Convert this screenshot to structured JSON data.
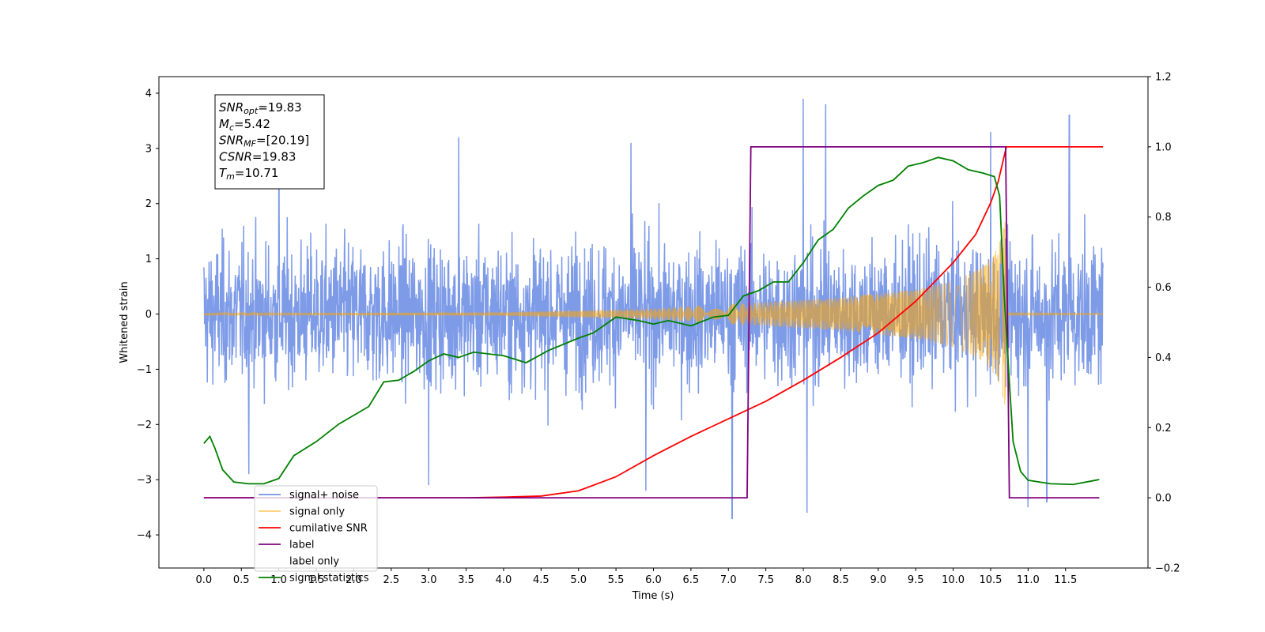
{
  "chart_data": {
    "type": "line",
    "xlabel": "Time (s)",
    "ylabel": "Whitened strain",
    "xlim": [
      -0.6,
      12.6
    ],
    "ylim": [
      -4.6,
      4.3
    ],
    "ylim_right": [
      -0.2,
      1.2
    ],
    "xticks": [
      0.0,
      0.5,
      1.0,
      1.5,
      2.0,
      2.5,
      3.0,
      3.5,
      4.0,
      4.5,
      5.0,
      5.5,
      6.0,
      6.5,
      7.0,
      7.5,
      8.0,
      8.5,
      9.0,
      9.5,
      10.0,
      10.5,
      11.0,
      11.5
    ],
    "xtick_labels": [
      "0.0",
      "0.5",
      "1.0",
      "1.5",
      "2.0",
      "2.5",
      "3.0",
      "3.5",
      "4.0",
      "4.5",
      "5.0",
      "5.5",
      "6.0",
      "6.5",
      "7.0",
      "7.5",
      "8.0",
      "8.5",
      "9.0",
      "9.5",
      "10.0",
      "10.5",
      "11.0",
      "11.5"
    ],
    "yticks_left": [
      -4,
      -3,
      -2,
      -1,
      0,
      1,
      2,
      3,
      4
    ],
    "yticks_left_labels": [
      "−4",
      "−3",
      "−2",
      "−1",
      "0",
      "1",
      "2",
      "3",
      "4"
    ],
    "yticks_right": [
      -0.2,
      0.0,
      0.2,
      0.4,
      0.6,
      0.8,
      1.0,
      1.2
    ],
    "yticks_right_labels": [
      "−0.2",
      "0.0",
      "0.2",
      "0.4",
      "0.6",
      "0.8",
      "1.0",
      "1.2"
    ],
    "grid": false,
    "legend_position": "bottom-left",
    "annotation": {
      "lines": [
        {
          "sym": "SNR",
          "sub": "opt",
          "val": "=19.83"
        },
        {
          "sym": "M",
          "sub": "c",
          "val": "=5.42"
        },
        {
          "sym": "SNR",
          "sub": "MF",
          "val": "=[20.19]"
        },
        {
          "sym": "CSNR",
          "sub": "",
          "val": "=19.83"
        },
        {
          "sym": "T",
          "sub": "m",
          "val": "=10.71"
        }
      ]
    },
    "series": [
      {
        "name": "signal+ noise",
        "axis": "left",
        "kind": "noise-band",
        "color": "#7090e6",
        "x_range": [
          0.0,
          12.0
        ],
        "typical_range": [
          -1.8,
          1.8
        ],
        "notable_peaks": [
          [
            1.0,
            3.3
          ],
          [
            3.4,
            3.2
          ],
          [
            5.7,
            3.1
          ],
          [
            8.0,
            3.9
          ],
          [
            8.3,
            3.8
          ],
          [
            10.5,
            3.3
          ],
          [
            11.55,
            3.6
          ]
        ],
        "notable_troughs": [
          [
            0.6,
            -2.9
          ],
          [
            3.0,
            -3.1
          ],
          [
            5.9,
            -3.2
          ],
          [
            7.05,
            -3.7
          ],
          [
            8.05,
            -3.6
          ],
          [
            11.0,
            -3.5
          ],
          [
            11.25,
            -3.4
          ]
        ]
      },
      {
        "name": "signal only",
        "axis": "left",
        "kind": "chirp",
        "color": "#ffa500",
        "x_range": [
          0.0,
          12.0
        ],
        "envelope": [
          [
            0.0,
            0.01
          ],
          [
            4.0,
            0.03
          ],
          [
            6.0,
            0.1
          ],
          [
            7.5,
            0.22
          ],
          [
            8.5,
            0.3
          ],
          [
            9.5,
            0.45
          ],
          [
            10.0,
            0.6
          ],
          [
            10.4,
            0.85
          ],
          [
            10.6,
            1.2
          ],
          [
            10.7,
            1.7
          ],
          [
            10.72,
            0.02
          ],
          [
            12.0,
            0.01
          ]
        ]
      },
      {
        "name": "cumilative SNR",
        "axis": "right",
        "color": "#ff0000",
        "points": [
          [
            0.0,
            0.0
          ],
          [
            3.5,
            0.0
          ],
          [
            4.0,
            0.002
          ],
          [
            4.5,
            0.005
          ],
          [
            5.0,
            0.02
          ],
          [
            5.5,
            0.06
          ],
          [
            6.0,
            0.12
          ],
          [
            6.5,
            0.175
          ],
          [
            7.0,
            0.225
          ],
          [
            7.5,
            0.275
          ],
          [
            8.0,
            0.335
          ],
          [
            8.5,
            0.4
          ],
          [
            9.0,
            0.47
          ],
          [
            9.5,
            0.56
          ],
          [
            10.0,
            0.67
          ],
          [
            10.3,
            0.75
          ],
          [
            10.5,
            0.84
          ],
          [
            10.6,
            0.9
          ],
          [
            10.71,
            1.0
          ],
          [
            11.0,
            1.0
          ],
          [
            12.0,
            1.0
          ]
        ]
      },
      {
        "name": "label",
        "axis": "right",
        "color": "#800080",
        "points": [
          [
            0.0,
            0.0
          ],
          [
            7.25,
            0.0
          ],
          [
            7.3,
            1.0
          ],
          [
            10.7,
            1.0
          ],
          [
            10.75,
            0.0
          ],
          [
            11.95,
            0.0
          ]
        ]
      },
      {
        "name": "label only",
        "axis": "right",
        "color": "#808080",
        "points": []
      },
      {
        "name": "signal statistics",
        "axis": "right",
        "color": "#008000",
        "points": [
          [
            0.0,
            0.155
          ],
          [
            0.08,
            0.175
          ],
          [
            0.15,
            0.14
          ],
          [
            0.25,
            0.08
          ],
          [
            0.4,
            0.045
          ],
          [
            0.6,
            0.04
          ],
          [
            0.8,
            0.04
          ],
          [
            1.0,
            0.055
          ],
          [
            1.2,
            0.12
          ],
          [
            1.5,
            0.16
          ],
          [
            1.8,
            0.21
          ],
          [
            2.0,
            0.235
          ],
          [
            2.2,
            0.26
          ],
          [
            2.4,
            0.33
          ],
          [
            2.6,
            0.335
          ],
          [
            2.8,
            0.36
          ],
          [
            3.0,
            0.39
          ],
          [
            3.2,
            0.41
          ],
          [
            3.4,
            0.4
          ],
          [
            3.6,
            0.415
          ],
          [
            4.0,
            0.405
          ],
          [
            4.3,
            0.385
          ],
          [
            4.6,
            0.42
          ],
          [
            5.0,
            0.455
          ],
          [
            5.2,
            0.47
          ],
          [
            5.5,
            0.515
          ],
          [
            5.8,
            0.505
          ],
          [
            6.0,
            0.495
          ],
          [
            6.2,
            0.505
          ],
          [
            6.5,
            0.49
          ],
          [
            6.8,
            0.515
          ],
          [
            7.0,
            0.52
          ],
          [
            7.2,
            0.575
          ],
          [
            7.4,
            0.59
          ],
          [
            7.6,
            0.615
          ],
          [
            7.8,
            0.615
          ],
          [
            8.0,
            0.67
          ],
          [
            8.2,
            0.735
          ],
          [
            8.4,
            0.765
          ],
          [
            8.6,
            0.825
          ],
          [
            8.8,
            0.86
          ],
          [
            9.0,
            0.89
          ],
          [
            9.2,
            0.905
          ],
          [
            9.4,
            0.945
          ],
          [
            9.6,
            0.955
          ],
          [
            9.8,
            0.97
          ],
          [
            10.0,
            0.96
          ],
          [
            10.2,
            0.935
          ],
          [
            10.4,
            0.925
          ],
          [
            10.55,
            0.915
          ],
          [
            10.62,
            0.86
          ],
          [
            10.68,
            0.58
          ],
          [
            10.75,
            0.33
          ],
          [
            10.8,
            0.16
          ],
          [
            10.9,
            0.075
          ],
          [
            11.0,
            0.05
          ],
          [
            11.3,
            0.04
          ],
          [
            11.6,
            0.038
          ],
          [
            11.9,
            0.05
          ],
          [
            11.95,
            0.052
          ]
        ]
      }
    ]
  }
}
